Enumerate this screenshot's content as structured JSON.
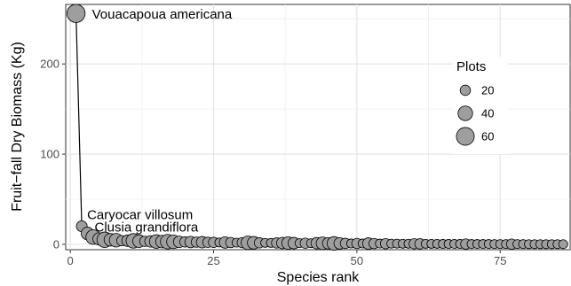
{
  "chart_data": {
    "type": "scatter",
    "xlabel": "Species rank",
    "ylabel": "Fruit−fall Dry Biomass (Kg)",
    "xlim": [
      -0.8,
      87.2
    ],
    "ylim": [
      -6,
      266
    ],
    "x_ticks": [
      0,
      25,
      50,
      75
    ],
    "y_ticks": [
      0,
      100,
      200
    ],
    "grid": true,
    "line_connects_points": true,
    "point_color": "#9e9e9e",
    "legend": {
      "title": "Plots",
      "placement": "right",
      "entries": [
        {
          "label": "20",
          "value": 20
        },
        {
          "label": "40",
          "value": 40
        },
        {
          "label": "60",
          "value": 60
        }
      ]
    },
    "annotations": [
      {
        "text": "Vouacapoua americana",
        "x": 1,
        "y": 256
      },
      {
        "text": "Caryocar villosum",
        "x": 2,
        "y": 20
      },
      {
        "text": "Clusia grandiflora",
        "x": 3,
        "y": 12
      }
    ],
    "points": [
      {
        "x": 1,
        "y": 256,
        "plots": 62
      },
      {
        "x": 2,
        "y": 20,
        "plots": 22
      },
      {
        "x": 3,
        "y": 12,
        "plots": 30
      },
      {
        "x": 4,
        "y": 8,
        "plots": 40
      },
      {
        "x": 5,
        "y": 6,
        "plots": 28
      },
      {
        "x": 6,
        "y": 5,
        "plots": 45
      },
      {
        "x": 7,
        "y": 5,
        "plots": 30
      },
      {
        "x": 8,
        "y": 4.5,
        "plots": 35
      },
      {
        "x": 9,
        "y": 4,
        "plots": 20
      },
      {
        "x": 10,
        "y": 4,
        "plots": 25
      },
      {
        "x": 11,
        "y": 3.8,
        "plots": 40
      },
      {
        "x": 12,
        "y": 3.5,
        "plots": 30
      },
      {
        "x": 13,
        "y": 3.3,
        "plots": 20
      },
      {
        "x": 14,
        "y": 3.2,
        "plots": 25
      },
      {
        "x": 15,
        "y": 3.1,
        "plots": 35
      },
      {
        "x": 16,
        "y": 3,
        "plots": 30
      },
      {
        "x": 17,
        "y": 2.9,
        "plots": 40
      },
      {
        "x": 18,
        "y": 2.8,
        "plots": 35
      },
      {
        "x": 19,
        "y": 2.7,
        "plots": 25
      },
      {
        "x": 20,
        "y": 2.6,
        "plots": 20
      },
      {
        "x": 21,
        "y": 2.5,
        "plots": 25
      },
      {
        "x": 22,
        "y": 2.4,
        "plots": 20
      },
      {
        "x": 23,
        "y": 2.3,
        "plots": 25
      },
      {
        "x": 24,
        "y": 2.2,
        "plots": 20
      },
      {
        "x": 25,
        "y": 2.1,
        "plots": 20
      },
      {
        "x": 26,
        "y": 2,
        "plots": 15
      },
      {
        "x": 27,
        "y": 2,
        "plots": 25
      },
      {
        "x": 28,
        "y": 1.9,
        "plots": 20
      },
      {
        "x": 29,
        "y": 1.8,
        "plots": 15
      },
      {
        "x": 30,
        "y": 1.8,
        "plots": 20
      },
      {
        "x": 31,
        "y": 1.7,
        "plots": 35
      },
      {
        "x": 32,
        "y": 1.7,
        "plots": 30
      },
      {
        "x": 33,
        "y": 1.6,
        "plots": 20
      },
      {
        "x": 34,
        "y": 1.6,
        "plots": 15
      },
      {
        "x": 35,
        "y": 1.5,
        "plots": 15
      },
      {
        "x": 36,
        "y": 1.5,
        "plots": 20
      },
      {
        "x": 37,
        "y": 1.4,
        "plots": 25
      },
      {
        "x": 38,
        "y": 1.4,
        "plots": 30
      },
      {
        "x": 39,
        "y": 1.3,
        "plots": 25
      },
      {
        "x": 40,
        "y": 1.3,
        "plots": 15
      },
      {
        "x": 41,
        "y": 1.2,
        "plots": 20
      },
      {
        "x": 42,
        "y": 1.2,
        "plots": 15
      },
      {
        "x": 43,
        "y": 1.2,
        "plots": 25
      },
      {
        "x": 44,
        "y": 1.1,
        "plots": 30
      },
      {
        "x": 45,
        "y": 1.1,
        "plots": 25
      },
      {
        "x": 46,
        "y": 1,
        "plots": 35
      },
      {
        "x": 47,
        "y": 1,
        "plots": 25
      },
      {
        "x": 48,
        "y": 1,
        "plots": 20
      },
      {
        "x": 49,
        "y": 0.9,
        "plots": 15
      },
      {
        "x": 50,
        "y": 0.9,
        "plots": 20
      },
      {
        "x": 51,
        "y": 0.9,
        "plots": 15
      },
      {
        "x": 52,
        "y": 0.8,
        "plots": 25
      },
      {
        "x": 53,
        "y": 0.8,
        "plots": 20
      },
      {
        "x": 54,
        "y": 0.8,
        "plots": 15
      },
      {
        "x": 55,
        "y": 0.7,
        "plots": 20
      },
      {
        "x": 56,
        "y": 0.7,
        "plots": 15
      },
      {
        "x": 57,
        "y": 0.7,
        "plots": 15
      },
      {
        "x": 58,
        "y": 0.6,
        "plots": 15
      },
      {
        "x": 59,
        "y": 0.6,
        "plots": 15
      },
      {
        "x": 60,
        "y": 0.6,
        "plots": 20
      },
      {
        "x": 61,
        "y": 0.5,
        "plots": 20
      },
      {
        "x": 62,
        "y": 0.5,
        "plots": 15
      },
      {
        "x": 63,
        "y": 0.5,
        "plots": 15
      },
      {
        "x": 64,
        "y": 0.5,
        "plots": 15
      },
      {
        "x": 65,
        "y": 0.4,
        "plots": 15
      },
      {
        "x": 66,
        "y": 0.4,
        "plots": 15
      },
      {
        "x": 67,
        "y": 0.4,
        "plots": 15
      },
      {
        "x": 68,
        "y": 0.4,
        "plots": 15
      },
      {
        "x": 69,
        "y": 0.3,
        "plots": 20
      },
      {
        "x": 70,
        "y": 0.3,
        "plots": 15
      },
      {
        "x": 71,
        "y": 0.3,
        "plots": 15
      },
      {
        "x": 72,
        "y": 0.3,
        "plots": 15
      },
      {
        "x": 73,
        "y": 0.3,
        "plots": 15
      },
      {
        "x": 74,
        "y": 0.2,
        "plots": 15
      },
      {
        "x": 75,
        "y": 0.2,
        "plots": 15
      },
      {
        "x": 76,
        "y": 0.2,
        "plots": 15
      },
      {
        "x": 77,
        "y": 0.2,
        "plots": 20
      },
      {
        "x": 78,
        "y": 0.2,
        "plots": 15
      },
      {
        "x": 79,
        "y": 0.2,
        "plots": 15
      },
      {
        "x": 80,
        "y": 0.1,
        "plots": 15
      },
      {
        "x": 81,
        "y": 0.1,
        "plots": 15
      },
      {
        "x": 82,
        "y": 0.1,
        "plots": 15
      },
      {
        "x": 83,
        "y": 0.1,
        "plots": 15
      },
      {
        "x": 84,
        "y": 0.1,
        "plots": 15
      },
      {
        "x": 85,
        "y": 0.1,
        "plots": 15
      },
      {
        "x": 86,
        "y": 0.1,
        "plots": 15
      }
    ]
  }
}
